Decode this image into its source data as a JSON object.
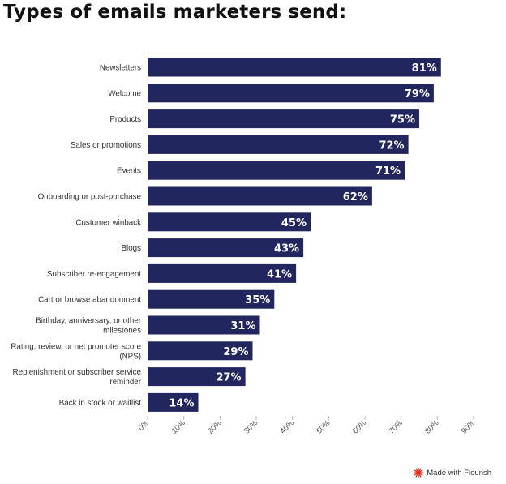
{
  "chart_data": {
    "type": "bar",
    "orientation": "horizontal",
    "title": "Types of emails marketers send:",
    "categories": [
      "Newsletters",
      "Welcome",
      "Products",
      "Sales or promotions",
      "Events",
      "Onboarding or post-purchase",
      "Customer winback",
      "Blogs",
      "Subscriber re-engagement",
      "Cart or browse abandonment",
      "Birthday, anniversary, or other milestones",
      "Rating, review, or net promoter score (NPS)",
      "Replenishment or subscriber service reminder",
      "Back in stock or waitlist"
    ],
    "category_lines": [
      [
        "Newsletters"
      ],
      [
        "Welcome"
      ],
      [
        "Products"
      ],
      [
        "Sales or promotions"
      ],
      [
        "Events"
      ],
      [
        "Onboarding or post-purchase"
      ],
      [
        "Customer winback"
      ],
      [
        "Blogs"
      ],
      [
        "Subscriber re-engagement"
      ],
      [
        "Cart or browse abandonment"
      ],
      [
        "Birthday, anniversary, or other",
        "milestones"
      ],
      [
        "Rating, review, or net promoter score",
        "(NPS)"
      ],
      [
        "Replenishment or subscriber service",
        "reminder"
      ],
      [
        "Back in stock or waitlist"
      ]
    ],
    "values": [
      81,
      79,
      75,
      72,
      71,
      62,
      45,
      43,
      41,
      35,
      31,
      29,
      27,
      14
    ],
    "value_labels": [
      "81%",
      "79%",
      "75%",
      "72%",
      "71%",
      "62%",
      "45%",
      "43%",
      "41%",
      "35%",
      "31%",
      "29%",
      "27%",
      "14%"
    ],
    "xlim": [
      0,
      90
    ],
    "xticks": [
      0,
      10,
      20,
      30,
      40,
      50,
      60,
      70,
      80,
      90
    ],
    "xtick_labels": [
      "0%",
      "10%",
      "20%",
      "30%",
      "40%",
      "50%",
      "60%",
      "70%",
      "80%",
      "90%"
    ],
    "xlabel": "",
    "ylabel": "",
    "grid": false,
    "legend": "none",
    "colors": {
      "bar": "#22265e",
      "value_label": "#ffffff",
      "axis_text": "#555555",
      "category_text": "#333333"
    }
  },
  "footer": {
    "credit": "Made with Flourish",
    "icon": "flourish-logo-icon",
    "icon_color": "#e0301e"
  }
}
